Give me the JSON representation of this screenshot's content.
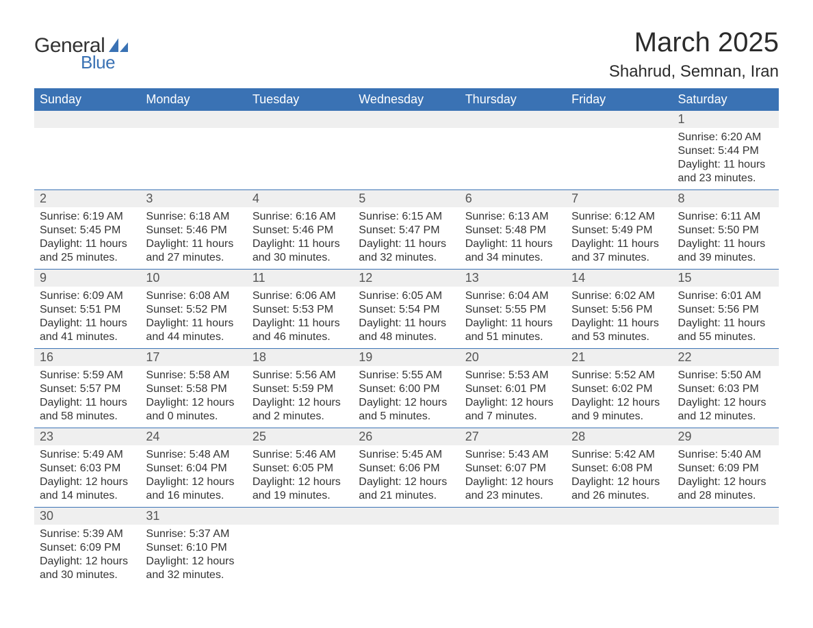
{
  "logo": {
    "text_general": "General",
    "text_blue": "Blue",
    "shape_color": "#3a72b4"
  },
  "title": "March 2025",
  "location": "Shahrud, Semnan, Iran",
  "colors": {
    "header_bg": "#3a72b4",
    "header_text": "#ffffff",
    "day_num_bg": "#efefef",
    "day_num_text": "#555555",
    "body_text": "#333333",
    "row_border": "#3a72b4",
    "page_bg": "#ffffff"
  },
  "typography": {
    "title_fontsize": 40,
    "location_fontsize": 24,
    "header_fontsize": 18,
    "daynum_fontsize": 18,
    "body_fontsize": 16,
    "font_family": "Arial"
  },
  "calendar": {
    "type": "table",
    "columns": [
      "Sunday",
      "Monday",
      "Tuesday",
      "Wednesday",
      "Thursday",
      "Friday",
      "Saturday"
    ],
    "weeks": [
      [
        null,
        null,
        null,
        null,
        null,
        null,
        {
          "day": "1",
          "sunrise": "Sunrise: 6:20 AM",
          "sunset": "Sunset: 5:44 PM",
          "daylight1": "Daylight: 11 hours",
          "daylight2": "and 23 minutes."
        }
      ],
      [
        {
          "day": "2",
          "sunrise": "Sunrise: 6:19 AM",
          "sunset": "Sunset: 5:45 PM",
          "daylight1": "Daylight: 11 hours",
          "daylight2": "and 25 minutes."
        },
        {
          "day": "3",
          "sunrise": "Sunrise: 6:18 AM",
          "sunset": "Sunset: 5:46 PM",
          "daylight1": "Daylight: 11 hours",
          "daylight2": "and 27 minutes."
        },
        {
          "day": "4",
          "sunrise": "Sunrise: 6:16 AM",
          "sunset": "Sunset: 5:46 PM",
          "daylight1": "Daylight: 11 hours",
          "daylight2": "and 30 minutes."
        },
        {
          "day": "5",
          "sunrise": "Sunrise: 6:15 AM",
          "sunset": "Sunset: 5:47 PM",
          "daylight1": "Daylight: 11 hours",
          "daylight2": "and 32 minutes."
        },
        {
          "day": "6",
          "sunrise": "Sunrise: 6:13 AM",
          "sunset": "Sunset: 5:48 PM",
          "daylight1": "Daylight: 11 hours",
          "daylight2": "and 34 minutes."
        },
        {
          "day": "7",
          "sunrise": "Sunrise: 6:12 AM",
          "sunset": "Sunset: 5:49 PM",
          "daylight1": "Daylight: 11 hours",
          "daylight2": "and 37 minutes."
        },
        {
          "day": "8",
          "sunrise": "Sunrise: 6:11 AM",
          "sunset": "Sunset: 5:50 PM",
          "daylight1": "Daylight: 11 hours",
          "daylight2": "and 39 minutes."
        }
      ],
      [
        {
          "day": "9",
          "sunrise": "Sunrise: 6:09 AM",
          "sunset": "Sunset: 5:51 PM",
          "daylight1": "Daylight: 11 hours",
          "daylight2": "and 41 minutes."
        },
        {
          "day": "10",
          "sunrise": "Sunrise: 6:08 AM",
          "sunset": "Sunset: 5:52 PM",
          "daylight1": "Daylight: 11 hours",
          "daylight2": "and 44 minutes."
        },
        {
          "day": "11",
          "sunrise": "Sunrise: 6:06 AM",
          "sunset": "Sunset: 5:53 PM",
          "daylight1": "Daylight: 11 hours",
          "daylight2": "and 46 minutes."
        },
        {
          "day": "12",
          "sunrise": "Sunrise: 6:05 AM",
          "sunset": "Sunset: 5:54 PM",
          "daylight1": "Daylight: 11 hours",
          "daylight2": "and 48 minutes."
        },
        {
          "day": "13",
          "sunrise": "Sunrise: 6:04 AM",
          "sunset": "Sunset: 5:55 PM",
          "daylight1": "Daylight: 11 hours",
          "daylight2": "and 51 minutes."
        },
        {
          "day": "14",
          "sunrise": "Sunrise: 6:02 AM",
          "sunset": "Sunset: 5:56 PM",
          "daylight1": "Daylight: 11 hours",
          "daylight2": "and 53 minutes."
        },
        {
          "day": "15",
          "sunrise": "Sunrise: 6:01 AM",
          "sunset": "Sunset: 5:56 PM",
          "daylight1": "Daylight: 11 hours",
          "daylight2": "and 55 minutes."
        }
      ],
      [
        {
          "day": "16",
          "sunrise": "Sunrise: 5:59 AM",
          "sunset": "Sunset: 5:57 PM",
          "daylight1": "Daylight: 11 hours",
          "daylight2": "and 58 minutes."
        },
        {
          "day": "17",
          "sunrise": "Sunrise: 5:58 AM",
          "sunset": "Sunset: 5:58 PM",
          "daylight1": "Daylight: 12 hours",
          "daylight2": "and 0 minutes."
        },
        {
          "day": "18",
          "sunrise": "Sunrise: 5:56 AM",
          "sunset": "Sunset: 5:59 PM",
          "daylight1": "Daylight: 12 hours",
          "daylight2": "and 2 minutes."
        },
        {
          "day": "19",
          "sunrise": "Sunrise: 5:55 AM",
          "sunset": "Sunset: 6:00 PM",
          "daylight1": "Daylight: 12 hours",
          "daylight2": "and 5 minutes."
        },
        {
          "day": "20",
          "sunrise": "Sunrise: 5:53 AM",
          "sunset": "Sunset: 6:01 PM",
          "daylight1": "Daylight: 12 hours",
          "daylight2": "and 7 minutes."
        },
        {
          "day": "21",
          "sunrise": "Sunrise: 5:52 AM",
          "sunset": "Sunset: 6:02 PM",
          "daylight1": "Daylight: 12 hours",
          "daylight2": "and 9 minutes."
        },
        {
          "day": "22",
          "sunrise": "Sunrise: 5:50 AM",
          "sunset": "Sunset: 6:03 PM",
          "daylight1": "Daylight: 12 hours",
          "daylight2": "and 12 minutes."
        }
      ],
      [
        {
          "day": "23",
          "sunrise": "Sunrise: 5:49 AM",
          "sunset": "Sunset: 6:03 PM",
          "daylight1": "Daylight: 12 hours",
          "daylight2": "and 14 minutes."
        },
        {
          "day": "24",
          "sunrise": "Sunrise: 5:48 AM",
          "sunset": "Sunset: 6:04 PM",
          "daylight1": "Daylight: 12 hours",
          "daylight2": "and 16 minutes."
        },
        {
          "day": "25",
          "sunrise": "Sunrise: 5:46 AM",
          "sunset": "Sunset: 6:05 PM",
          "daylight1": "Daylight: 12 hours",
          "daylight2": "and 19 minutes."
        },
        {
          "day": "26",
          "sunrise": "Sunrise: 5:45 AM",
          "sunset": "Sunset: 6:06 PM",
          "daylight1": "Daylight: 12 hours",
          "daylight2": "and 21 minutes."
        },
        {
          "day": "27",
          "sunrise": "Sunrise: 5:43 AM",
          "sunset": "Sunset: 6:07 PM",
          "daylight1": "Daylight: 12 hours",
          "daylight2": "and 23 minutes."
        },
        {
          "day": "28",
          "sunrise": "Sunrise: 5:42 AM",
          "sunset": "Sunset: 6:08 PM",
          "daylight1": "Daylight: 12 hours",
          "daylight2": "and 26 minutes."
        },
        {
          "day": "29",
          "sunrise": "Sunrise: 5:40 AM",
          "sunset": "Sunset: 6:09 PM",
          "daylight1": "Daylight: 12 hours",
          "daylight2": "and 28 minutes."
        }
      ],
      [
        {
          "day": "30",
          "sunrise": "Sunrise: 5:39 AM",
          "sunset": "Sunset: 6:09 PM",
          "daylight1": "Daylight: 12 hours",
          "daylight2": "and 30 minutes."
        },
        {
          "day": "31",
          "sunrise": "Sunrise: 5:37 AM",
          "sunset": "Sunset: 6:10 PM",
          "daylight1": "Daylight: 12 hours",
          "daylight2": "and 32 minutes."
        },
        null,
        null,
        null,
        null,
        null
      ]
    ]
  }
}
